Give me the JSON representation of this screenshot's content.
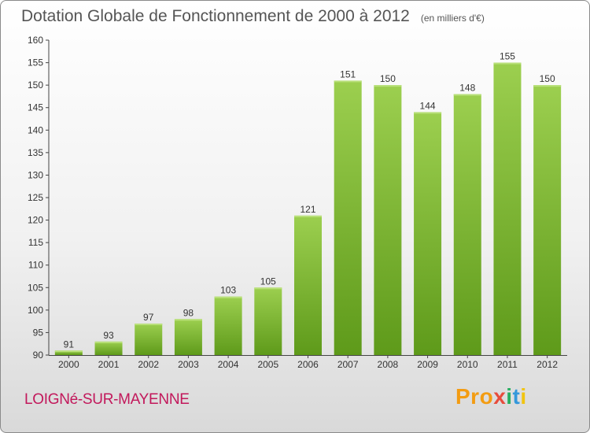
{
  "header": {
    "title": "Dotation Globale de Fonctionnement de 2000 à 2012",
    "unit": "(en milliers d'€)"
  },
  "footer": {
    "commune": "LOIGNé-SUR-MAYENNE",
    "logo": [
      "Pro",
      "x",
      "i",
      "t",
      "i"
    ]
  },
  "colors": {
    "bar_light": "#9ccf4f",
    "bar_dark": "#5e9a1a",
    "commune_text": "#c2185b"
  },
  "chart_data": {
    "type": "bar",
    "title": "Dotation Globale de Fonctionnement de 2000 à 2012",
    "subtitle": "(en milliers d'€)",
    "categories": [
      "2000",
      "2001",
      "2002",
      "2003",
      "2004",
      "2005",
      "2006",
      "2007",
      "2008",
      "2009",
      "2010",
      "2011",
      "2012"
    ],
    "values": [
      91,
      93,
      97,
      98,
      103,
      105,
      121,
      151,
      150,
      144,
      148,
      155,
      150
    ],
    "ylim": [
      90,
      160
    ],
    "yticks": [
      90,
      95,
      100,
      105,
      110,
      115,
      120,
      125,
      130,
      135,
      140,
      145,
      150,
      155,
      160
    ],
    "grid": false,
    "xlabel": "",
    "ylabel": ""
  }
}
